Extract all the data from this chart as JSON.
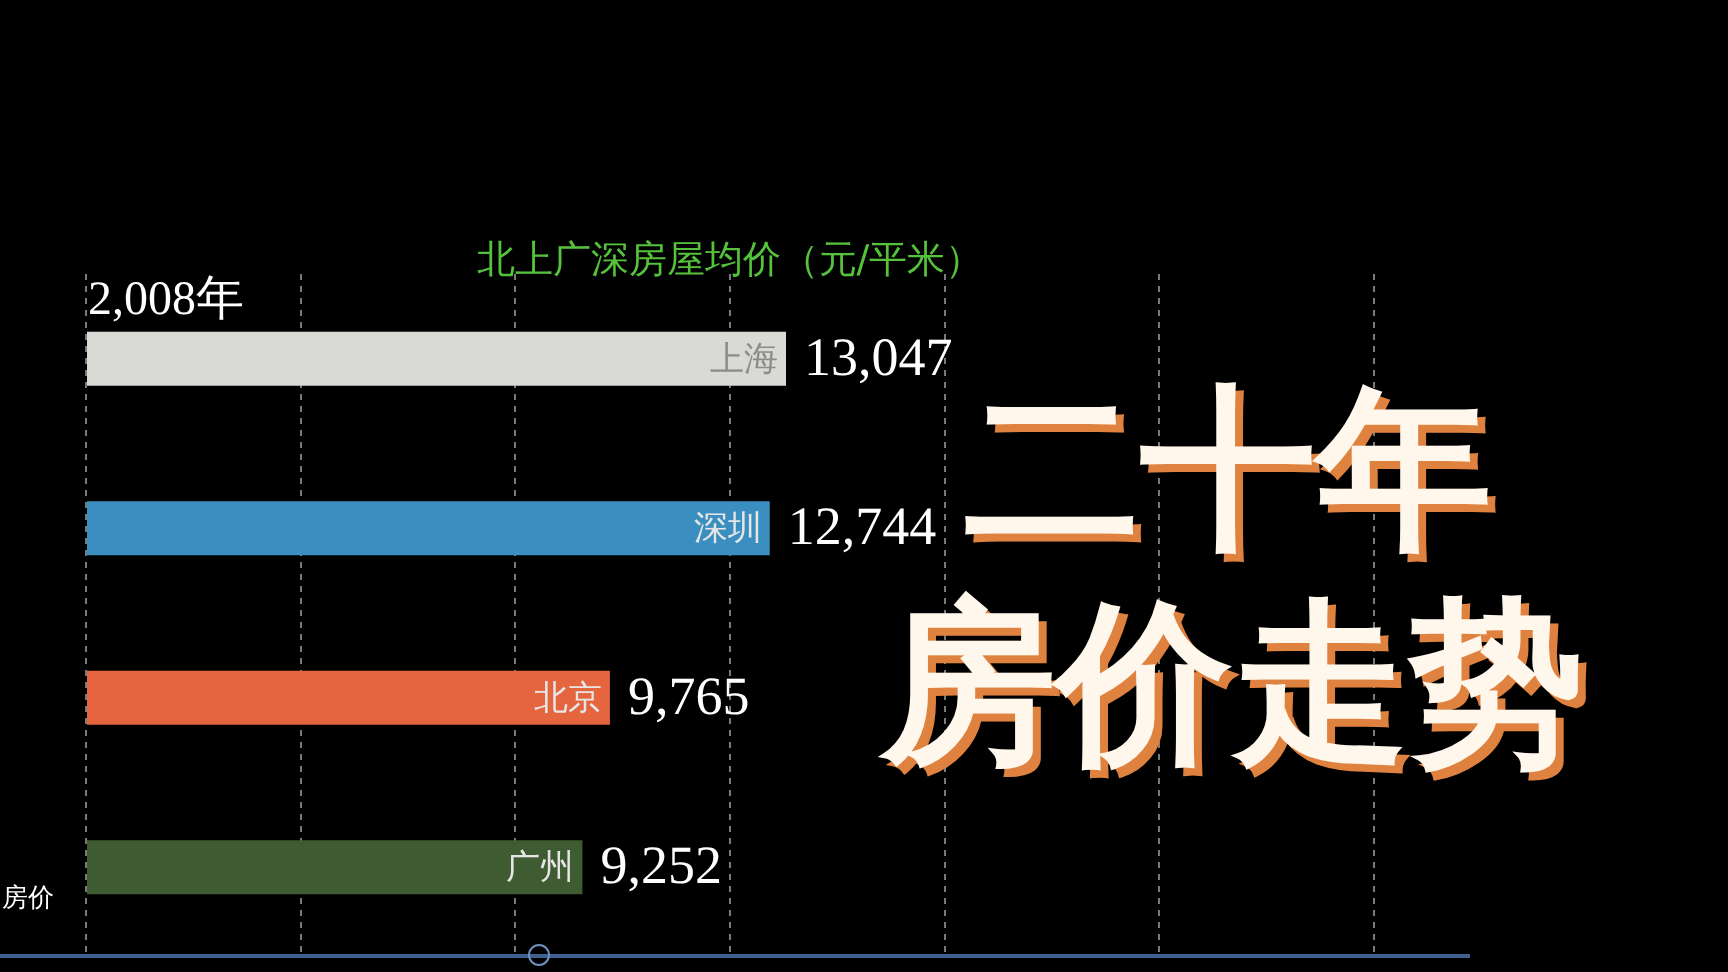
{
  "chart_data": {
    "type": "bar",
    "orientation": "horizontal",
    "title": "北上广深房屋均价（元/平米）",
    "categories": [
      "上海",
      "深圳",
      "北京",
      "广州"
    ],
    "values": [
      13047,
      12744,
      9765,
      9252
    ],
    "colors": [
      "#d9d9d5",
      "#3a8ec0",
      "#e5653e",
      "#3e5b31"
    ],
    "value_labels": [
      "13,047",
      "12,744",
      "9,765",
      "9,252"
    ],
    "grid": "x",
    "legend": false,
    "annotations": [
      "2,008年",
      "二十年",
      "房价走势",
      "房价"
    ]
  }
}
